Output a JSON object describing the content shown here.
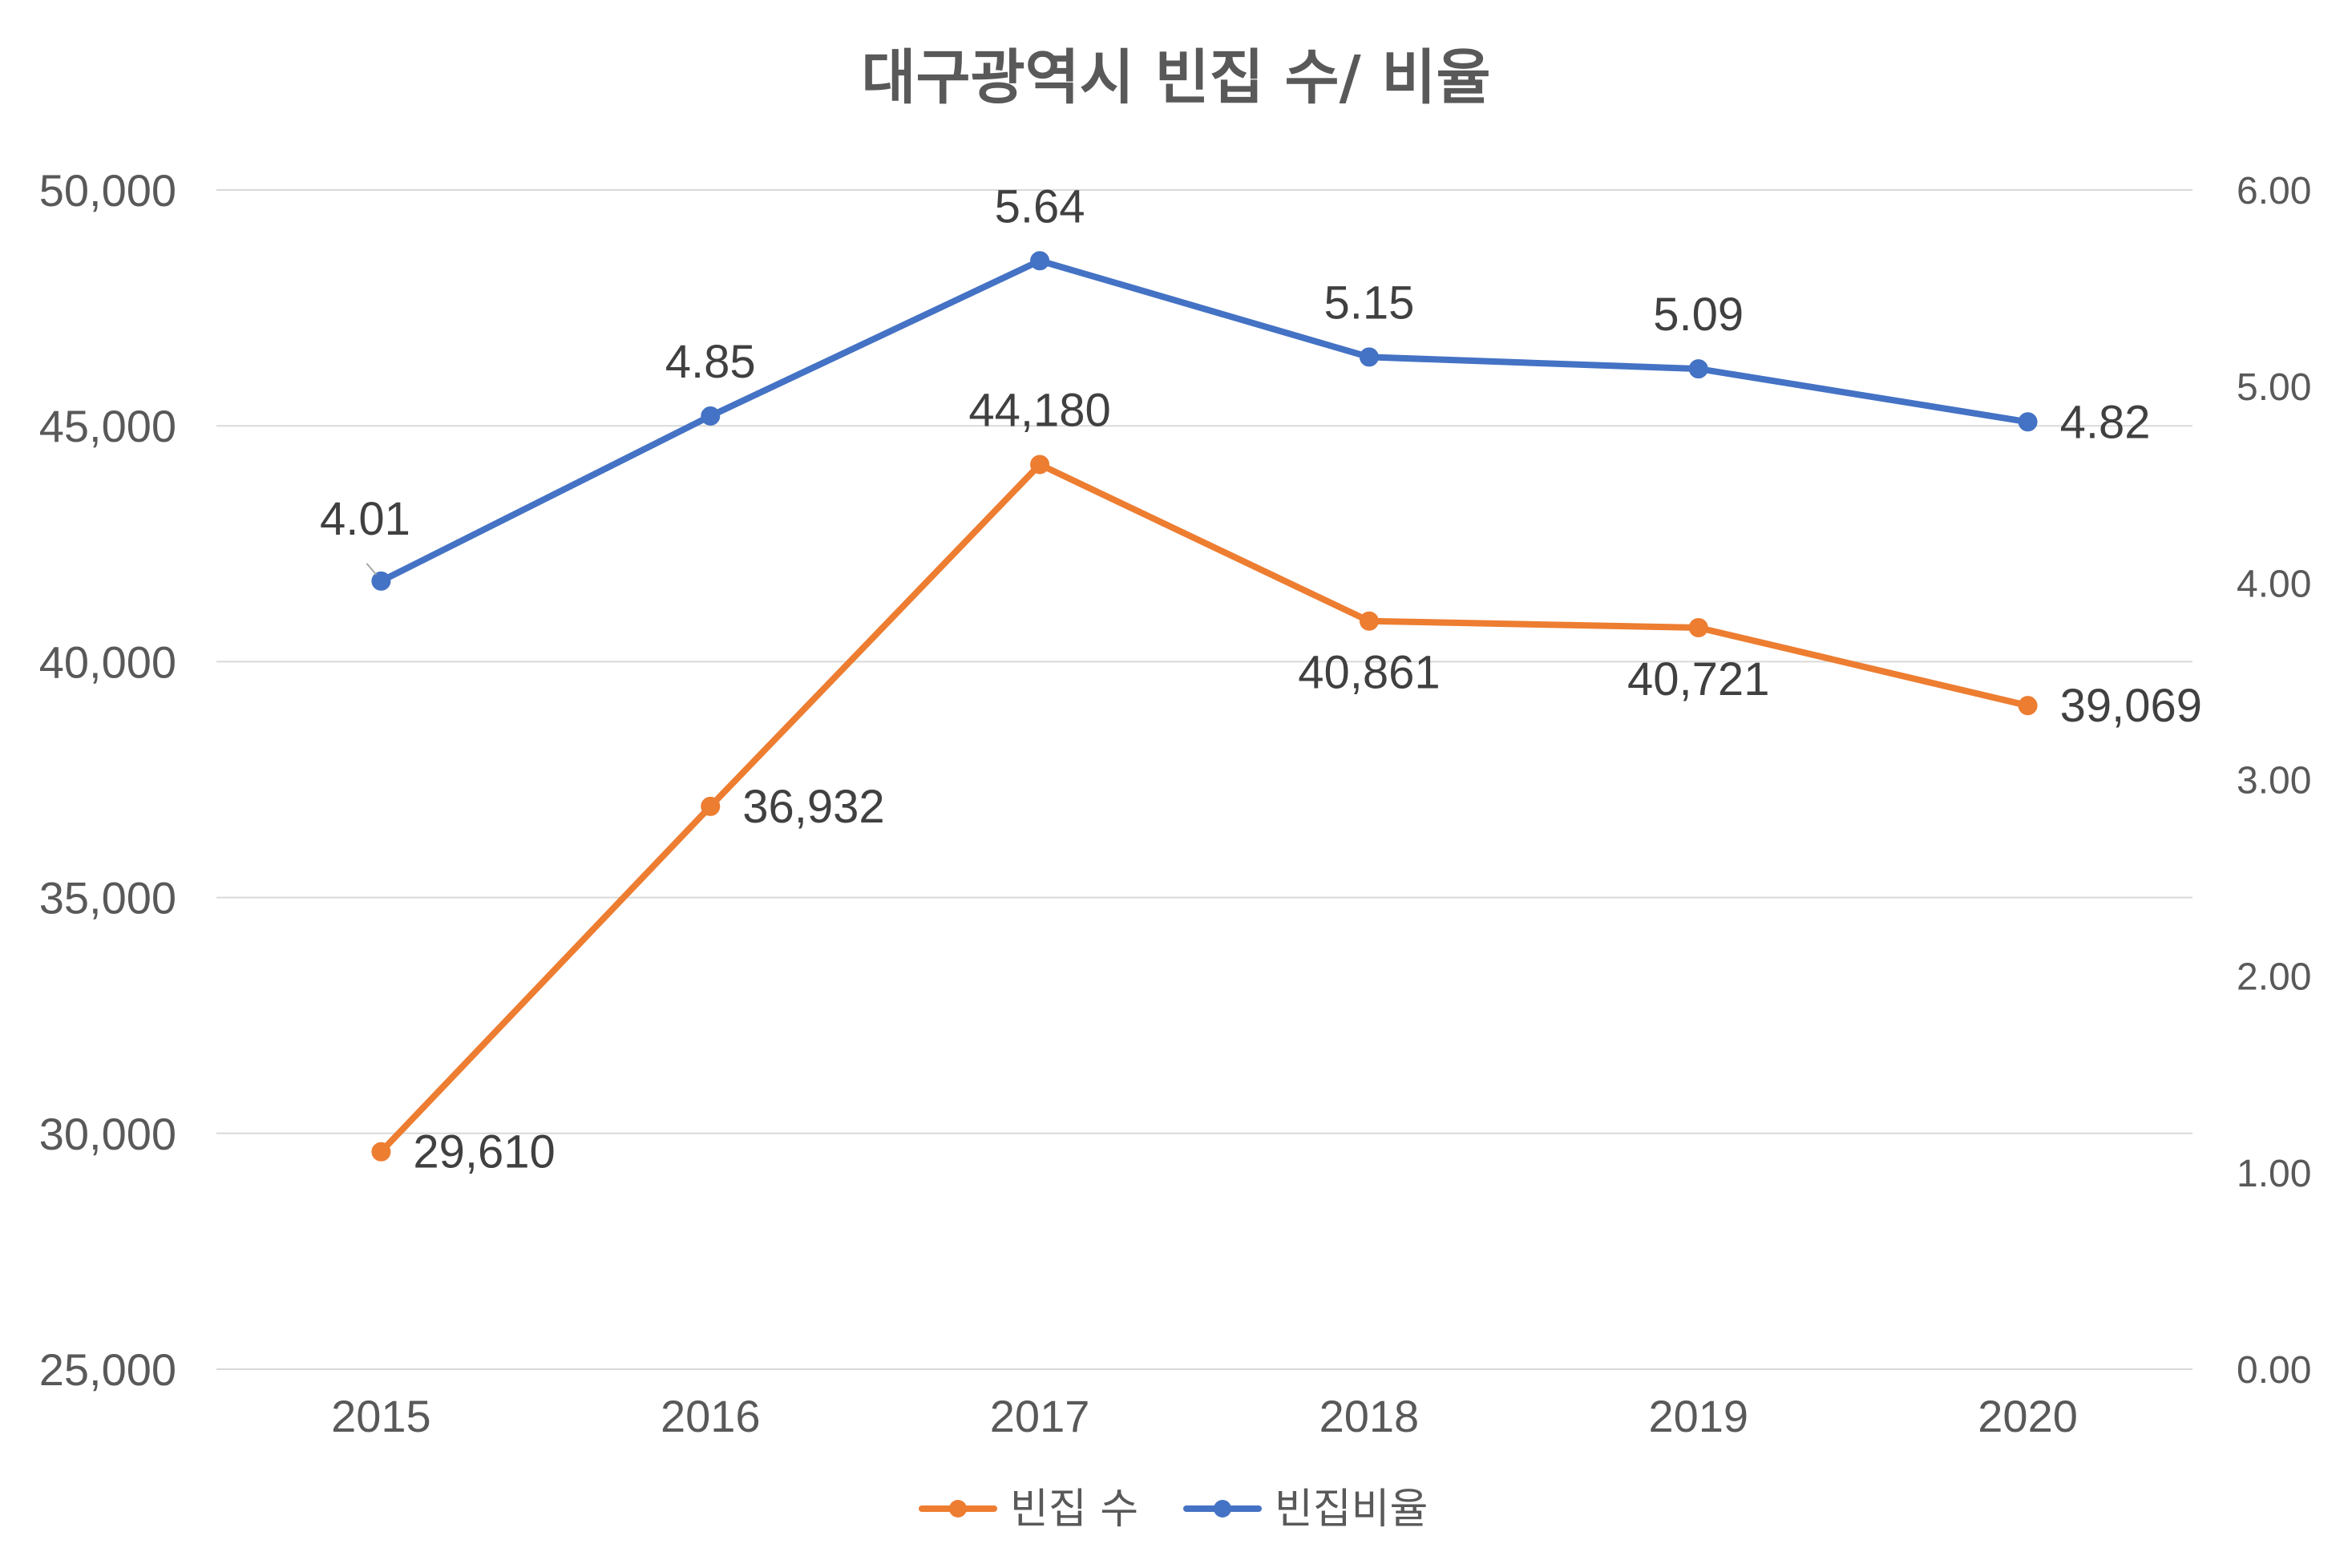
{
  "chart_data": {
    "type": "line",
    "title": "대구광역시 빈집 수/ 비율",
    "categories": [
      "2015",
      "2016",
      "2017",
      "2018",
      "2019",
      "2020"
    ],
    "series": [
      {
        "name": "빈집 수",
        "axis": "left",
        "color": "#ED7D31",
        "values": [
          29610,
          36932,
          44180,
          40861,
          40721,
          39069
        ],
        "labels": [
          "29,610",
          "36,932",
          "44,180",
          "40,861",
          "40,721",
          "39,069"
        ],
        "label_positions": [
          "right",
          "right",
          "above",
          "below",
          "below",
          "right"
        ]
      },
      {
        "name": "빈집비율",
        "axis": "right",
        "color": "#4472C4",
        "values": [
          4.01,
          4.85,
          5.64,
          5.15,
          5.09,
          4.82
        ],
        "labels": [
          "4.01",
          "4.85",
          "5.64",
          "5.15",
          "5.09",
          "4.82"
        ],
        "label_positions": [
          "above-left",
          "above",
          "above",
          "above",
          "above",
          "right"
        ]
      }
    ],
    "y_left": {
      "min": 25000,
      "max": 50000,
      "step": 5000,
      "tick_labels": [
        "25,000",
        "30,000",
        "35,000",
        "40,000",
        "45,000",
        "50,000"
      ]
    },
    "y_right": {
      "min": 0,
      "max": 6,
      "step": 1,
      "tick_labels": [
        "0.00",
        "1.00",
        "2.00",
        "3.00",
        "4.00",
        "5.00",
        "6.00"
      ]
    },
    "grid": true,
    "legend": "bottom",
    "markers": true
  }
}
